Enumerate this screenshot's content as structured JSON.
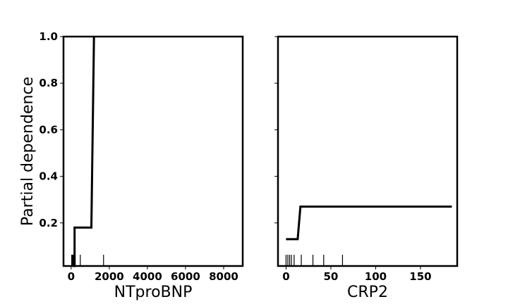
{
  "chart_data": {
    "type": "line",
    "ylabel": "Partial dependence",
    "ylim": [
      0.015,
      1.0
    ],
    "yticks": [
      0.2,
      0.4,
      0.6,
      0.8,
      1.0
    ],
    "ytick_labels": [
      "0.2",
      "0.4",
      "0.6",
      "0.8",
      "1.0"
    ],
    "shared_y": true,
    "panels": [
      {
        "xlabel": "NTproBNP",
        "xlim": [
          -400,
          9000
        ],
        "xticks": [
          0,
          2000,
          4000,
          6000,
          8000
        ],
        "xtick_labels": [
          "0",
          "2000",
          "4000",
          "6000",
          "8000"
        ],
        "x": [
          80,
          180,
          180,
          1060,
          1060,
          1200,
          1200
        ],
        "y": [
          0.015,
          0.015,
          0.18,
          0.18,
          0.18,
          1.0,
          1.0
        ],
        "rug": [
          30,
          60,
          90,
          120,
          150,
          180,
          210,
          480,
          1700
        ]
      },
      {
        "xlabel": "CRP2",
        "xlim": [
          -9,
          191
        ],
        "xticks": [
          0,
          50,
          100,
          150
        ],
        "xtick_labels": [
          "0",
          "50",
          "100",
          "150"
        ],
        "x": [
          0,
          13,
          16,
          185
        ],
        "y": [
          0.13,
          0.13,
          0.27,
          0.27
        ],
        "rug": [
          0,
          2,
          4,
          6,
          9,
          17,
          30,
          42,
          63
        ]
      }
    ]
  }
}
